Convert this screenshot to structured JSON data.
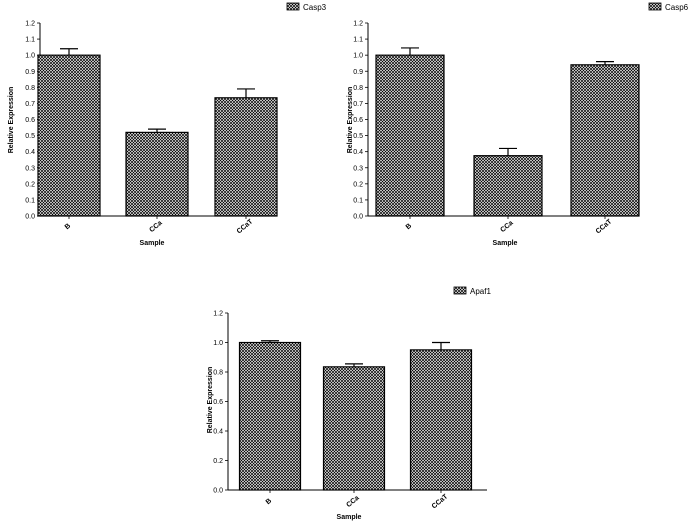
{
  "chart_data": [
    {
      "type": "bar",
      "title": "",
      "legend": "Casp3",
      "xlabel": "Sample",
      "ylabel": "Relative Expression",
      "categories": [
        "B",
        "CCa",
        "CCaT"
      ],
      "values": [
        1.0,
        0.52,
        0.735
      ],
      "errors": [
        0.04,
        0.02,
        0.055
      ],
      "ylim": [
        0,
        1.2
      ],
      "yticks": [
        "0.0",
        "0.1",
        "0.2",
        "0.3",
        "0.4",
        "0.5",
        "0.6",
        "0.7",
        "0.8",
        "0.9",
        "1.0",
        "1.1",
        "1.2"
      ],
      "legend_position": "top-right"
    },
    {
      "type": "bar",
      "title": "",
      "legend": "Casp6",
      "xlabel": "Sample",
      "ylabel": "Relative Expression",
      "categories": [
        "B",
        "CCa",
        "CCaT"
      ],
      "values": [
        1.0,
        0.375,
        0.94
      ],
      "errors": [
        0.045,
        0.045,
        0.02
      ],
      "ylim": [
        0,
        1.2
      ],
      "yticks": [
        "0.0",
        "0.1",
        "0.2",
        "0.3",
        "0.4",
        "0.5",
        "0.6",
        "0.7",
        "0.8",
        "0.9",
        "1.0",
        "1.1",
        "1.2"
      ],
      "legend_position": "top-right"
    },
    {
      "type": "bar",
      "title": "",
      "legend": "Apaf1",
      "xlabel": "Sample",
      "ylabel": "Relative Expression",
      "categories": [
        "B",
        "CCa",
        "CCaT"
      ],
      "values": [
        1.0,
        0.835,
        0.95
      ],
      "errors": [
        0.012,
        0.02,
        0.05
      ],
      "ylim": [
        0,
        1.2
      ],
      "yticks": [
        "0.0",
        "0.2",
        "0.4",
        "0.6",
        "0.8",
        "1.0",
        "1.2"
      ],
      "legend_position": "top-right"
    }
  ]
}
